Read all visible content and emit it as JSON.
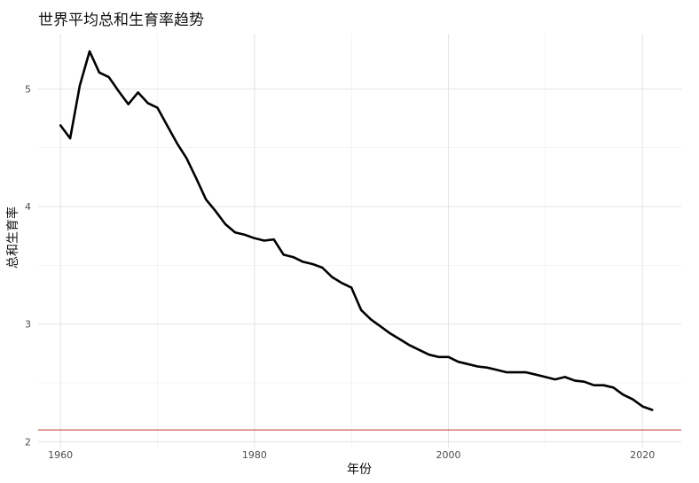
{
  "chart_data": {
    "type": "line",
    "title": "世界平均总和生育率趋势",
    "xlabel": "年份",
    "ylabel": "总和生育率",
    "xlim": [
      1957.7,
      2024.0
    ],
    "ylim": [
      1.95,
      5.47
    ],
    "x_ticks": [
      1960,
      1980,
      2000,
      2020
    ],
    "y_ticks": [
      2,
      3,
      4,
      5
    ],
    "grid": true,
    "series": [
      {
        "color": "#000000",
        "x": [
          1960,
          1961,
          1962,
          1963,
          1964,
          1965,
          1966,
          1967,
          1968,
          1969,
          1970,
          1971,
          1972,
          1973,
          1974,
          1975,
          1976,
          1977,
          1978,
          1979,
          1980,
          1981,
          1982,
          1983,
          1984,
          1985,
          1986,
          1987,
          1988,
          1989,
          1990,
          1991,
          1992,
          1993,
          1994,
          1995,
          1996,
          1997,
          1998,
          1999,
          2000,
          2001,
          2002,
          2003,
          2004,
          2005,
          2006,
          2007,
          2008,
          2009,
          2010,
          2011,
          2012,
          2013,
          2014,
          2015,
          2016,
          2017,
          2018,
          2019,
          2020,
          2021
        ],
        "y": [
          4.69,
          4.58,
          5.03,
          5.32,
          5.14,
          5.1,
          4.98,
          4.87,
          4.97,
          4.88,
          4.84,
          4.69,
          4.54,
          4.41,
          4.24,
          4.06,
          3.96,
          3.85,
          3.78,
          3.76,
          3.73,
          3.71,
          3.72,
          3.59,
          3.57,
          3.53,
          3.51,
          3.48,
          3.4,
          3.35,
          3.31,
          3.12,
          3.04,
          2.98,
          2.92,
          2.87,
          2.82,
          2.78,
          2.74,
          2.72,
          2.72,
          2.68,
          2.66,
          2.64,
          2.63,
          2.61,
          2.59,
          2.59,
          2.59,
          2.57,
          2.55,
          2.53,
          2.55,
          2.52,
          2.51,
          2.48,
          2.48,
          2.46,
          2.4,
          2.36,
          2.3,
          2.27
        ]
      }
    ],
    "reference_line": {
      "y": 2.1,
      "color": "#c0392b"
    }
  }
}
